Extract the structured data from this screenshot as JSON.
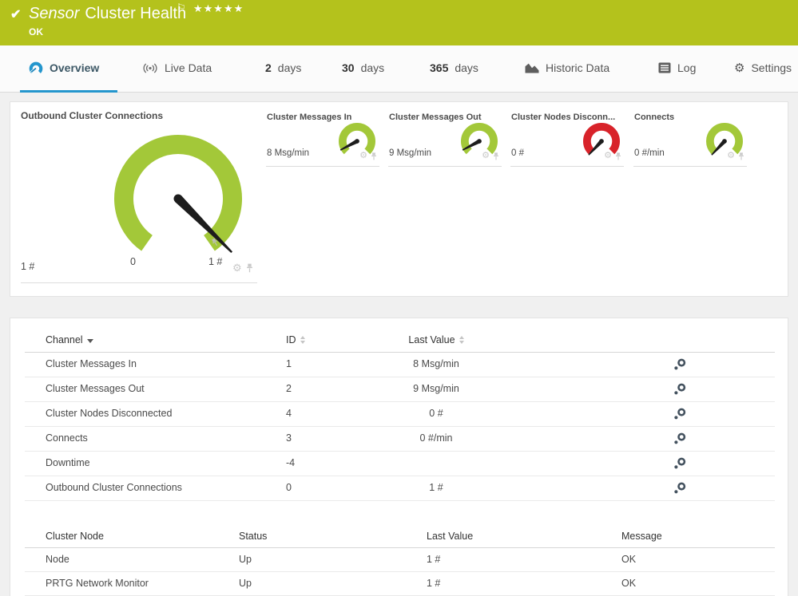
{
  "colors": {
    "header_bg": "#b4c21c",
    "active_tab_accent": "#2496cd",
    "gauge_green": "#a3c839",
    "gauge_red": "#d8232a",
    "needle": "#1d1d1d"
  },
  "icons": {
    "check": "✔",
    "flag": "⚐",
    "gear": "⚙"
  },
  "header": {
    "kind_label": "Sensor",
    "title": "Cluster Health",
    "status": "OK",
    "rating": "★★★★★"
  },
  "tabs": {
    "overview": {
      "label": "Overview"
    },
    "live_data": {
      "label": "Live Data"
    },
    "days2": {
      "number": "2",
      "label": "days"
    },
    "days30": {
      "number": "30",
      "label": "days"
    },
    "days365": {
      "number": "365",
      "label": "days"
    },
    "historic": {
      "label": "Historic Data"
    },
    "log": {
      "label": "Log"
    },
    "settings": {
      "label": "Settings"
    }
  },
  "gauges": {
    "main": {
      "title": "Outbound Cluster Connections",
      "current_value": "1 #",
      "scale_min": "0",
      "scale_max": "1 #",
      "color": "#a3c839",
      "needle_angle_deg": 45
    },
    "small": [
      {
        "title": "Cluster Messages In",
        "value": "8 Msg/min",
        "color": "#a3c839",
        "needle_angle_deg": 152
      },
      {
        "title": "Cluster Messages Out",
        "value": "9 Msg/min",
        "color": "#a3c839",
        "needle_angle_deg": 152
      },
      {
        "title": "Cluster Nodes Disconn...",
        "value": "0 #",
        "color": "#d8232a",
        "needle_angle_deg": 133
      },
      {
        "title": "Connects",
        "value": "0 #/min",
        "color": "#a3c839",
        "needle_angle_deg": 133
      }
    ]
  },
  "channel_table": {
    "headers": {
      "channel": "Channel",
      "id": "ID",
      "last_value": "Last Value"
    },
    "rows": [
      {
        "channel": "Cluster Messages In",
        "id": "1",
        "last_value": "8 Msg/min"
      },
      {
        "channel": "Cluster Messages Out",
        "id": "2",
        "last_value": "9 Msg/min"
      },
      {
        "channel": "Cluster Nodes Disconnected",
        "id": "4",
        "last_value": "0 #"
      },
      {
        "channel": "Connects",
        "id": "3",
        "last_value": "0 #/min"
      },
      {
        "channel": "Downtime",
        "id": "-4",
        "last_value": ""
      },
      {
        "channel": "Outbound Cluster Connections",
        "id": "0",
        "last_value": "1 #"
      }
    ]
  },
  "node_table": {
    "headers": {
      "node": "Cluster Node",
      "status": "Status",
      "last_value": "Last Value",
      "message": "Message"
    },
    "rows": [
      {
        "node": "Node",
        "status": "Up",
        "last_value": "1 #",
        "message": "OK"
      },
      {
        "node": "PRTG Network Monitor",
        "status": "Up",
        "last_value": "1 #",
        "message": "OK"
      }
    ]
  }
}
